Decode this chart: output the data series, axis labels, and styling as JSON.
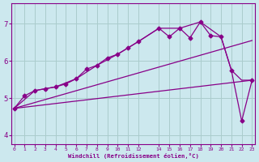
{
  "xlabel": "Windchill (Refroidissement éolien,°C)",
  "bg_color": "#cce8ee",
  "line_color": "#880088",
  "grid_color": "#aacccc",
  "xlim": [
    -0.3,
    23.3
  ],
  "ylim": [
    3.75,
    7.55
  ],
  "xticks": [
    0,
    1,
    2,
    3,
    4,
    5,
    6,
    7,
    8,
    9,
    10,
    11,
    12,
    14,
    15,
    16,
    17,
    18,
    19,
    20,
    21,
    22,
    23
  ],
  "xtick_labels": [
    "0",
    "1",
    "2",
    "3",
    "4",
    "5",
    "6",
    "7",
    "8",
    "9",
    "10",
    "11",
    "12",
    "14",
    "15",
    "16",
    "17",
    "18",
    "19",
    "20",
    "21",
    "22",
    "23"
  ],
  "yticks": [
    4,
    5,
    6,
    7
  ],
  "series": [
    {
      "x": [
        0,
        1,
        2,
        3,
        4,
        5,
        6,
        7,
        8,
        9,
        10,
        11,
        12,
        14,
        15,
        16,
        17,
        18,
        19,
        20,
        21,
        22,
        23
      ],
      "y": [
        4.72,
        5.06,
        5.2,
        5.25,
        5.3,
        5.38,
        5.52,
        5.78,
        5.88,
        6.08,
        6.18,
        6.35,
        6.52,
        6.88,
        6.65,
        6.88,
        6.62,
        7.05,
        6.68,
        6.65,
        5.75,
        4.38,
        5.48
      ],
      "marker": "D",
      "markersize": 2.5,
      "linewidth": 0.9
    },
    {
      "x": [
        0,
        2,
        4,
        6,
        8,
        10,
        12,
        14,
        16,
        18,
        20,
        21,
        22,
        23
      ],
      "y": [
        4.72,
        5.2,
        5.3,
        5.52,
        5.88,
        6.18,
        6.52,
        6.88,
        6.88,
        7.05,
        6.65,
        5.75,
        5.48,
        5.48
      ],
      "marker": null,
      "markersize": 0,
      "linewidth": 0.9
    },
    {
      "x": [
        0,
        23
      ],
      "y": [
        4.72,
        6.55
      ],
      "marker": null,
      "markersize": 0,
      "linewidth": 0.9
    },
    {
      "x": [
        0,
        23
      ],
      "y": [
        4.72,
        5.48
      ],
      "marker": null,
      "markersize": 0,
      "linewidth": 0.9
    }
  ]
}
